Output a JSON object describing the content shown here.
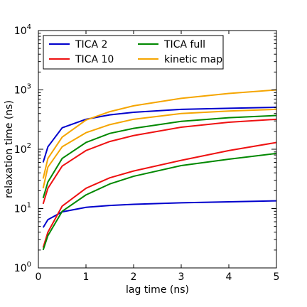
{
  "chart_data": {
    "type": "line",
    "xlabel": "lag time (ns)",
    "ylabel": "relaxation time (ns)",
    "xlim": [
      0,
      5
    ],
    "ylim": [
      1,
      10000
    ],
    "yscale": "log",
    "grid": false,
    "legend_position": "top-left",
    "x_ticks": [
      0,
      1,
      2,
      3,
      4,
      5
    ],
    "x_tick_labels": [
      "0",
      "1",
      "2",
      "3",
      "4",
      "5"
    ],
    "y_ticks": [
      1,
      10,
      100,
      1000,
      10000
    ],
    "y_tick_labels": [
      {
        "base": "10",
        "exp": "0"
      },
      {
        "base": "10",
        "exp": "1"
      },
      {
        "base": "10",
        "exp": "2"
      },
      {
        "base": "10",
        "exp": "3"
      },
      {
        "base": "10",
        "exp": "4"
      }
    ],
    "x": [
      0.1,
      0.2,
      0.5,
      1.0,
      1.5,
      2.0,
      3.0,
      4.0,
      5.0
    ],
    "series": [
      {
        "name": "TICA 2",
        "color": "#0000cc",
        "values": [
          60,
          110,
          230,
          320,
          380,
          420,
          470,
          490,
          510
        ]
      },
      {
        "name": "TICA 2",
        "color": "#0000cc",
        "values": [
          4.8,
          6.5,
          8.8,
          10.5,
          11.3,
          11.8,
          12.5,
          13.0,
          13.5
        ]
      },
      {
        "name": "TICA 10",
        "color": "#ee1111",
        "values": [
          12,
          22,
          52,
          95,
          135,
          170,
          235,
          285,
          320
        ]
      },
      {
        "name": "TICA 10",
        "color": "#ee1111",
        "values": [
          2.2,
          4.0,
          11,
          22,
          33,
          43,
          65,
          95,
          130
        ]
      },
      {
        "name": "TICA full",
        "color": "#008800",
        "values": [
          15,
          28,
          70,
          130,
          185,
          225,
          295,
          340,
          370
        ]
      },
      {
        "name": "TICA full",
        "color": "#008800",
        "values": [
          2.0,
          3.5,
          9.0,
          17,
          26,
          35,
          53,
          68,
          85
        ]
      },
      {
        "name": "kinetic map",
        "color": "#f5a500",
        "values": [
          32,
          70,
          160,
          310,
          430,
          540,
          720,
          870,
          1000
        ]
      },
      {
        "name": "kinetic map",
        "color": "#f5a500",
        "values": [
          22,
          50,
          110,
          190,
          260,
          320,
          400,
          440,
          470
        ]
      }
    ],
    "legend": [
      {
        "label": "TICA 2",
        "color": "#0000cc"
      },
      {
        "label": "TICA 10",
        "color": "#ee1111"
      },
      {
        "label": "TICA full",
        "color": "#008800"
      },
      {
        "label": "kinetic map",
        "color": "#f5a500"
      }
    ]
  }
}
